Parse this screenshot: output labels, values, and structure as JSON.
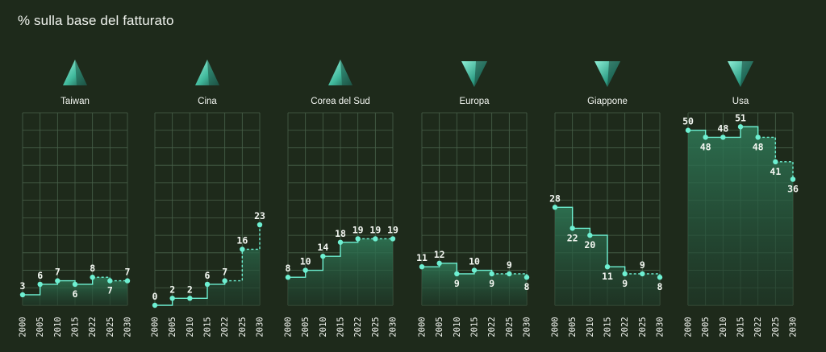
{
  "title": "% sulla base del fatturato",
  "colors": {
    "background": "#1e2a1b",
    "grid": "#48604a",
    "line": "#6ef0d2",
    "fill_top": "#2f7a58",
    "fill_bottom": "#1f3a29",
    "text": "#f0f3ee"
  },
  "chart_data": [
    {
      "type": "line",
      "title": "Taiwan",
      "trend": "up",
      "trend_icon": "triangle-up-icon",
      "categories": [
        "2000",
        "2005",
        "2010",
        "2015",
        "2022",
        "2025",
        "2030"
      ],
      "values": [
        3,
        6,
        7,
        6,
        8,
        7,
        7
      ],
      "projected_from_index": 4,
      "ylim": [
        0,
        55
      ],
      "grid": true
    },
    {
      "type": "line",
      "title": "Cina",
      "trend": "up",
      "trend_icon": "triangle-up-icon",
      "categories": [
        "2000",
        "2005",
        "2010",
        "2015",
        "2022",
        "2025",
        "2030"
      ],
      "values": [
        0,
        2,
        2,
        6,
        7,
        16,
        23
      ],
      "projected_from_index": 4,
      "ylim": [
        0,
        55
      ],
      "grid": true
    },
    {
      "type": "line",
      "title": "Corea del Sud",
      "trend": "up",
      "trend_icon": "triangle-up-icon",
      "categories": [
        "2000",
        "2005",
        "2010",
        "2015",
        "2022",
        "2025",
        "2030"
      ],
      "values": [
        8,
        10,
        14,
        18,
        19,
        19,
        19
      ],
      "projected_from_index": 4,
      "ylim": [
        0,
        55
      ],
      "grid": true
    },
    {
      "type": "line",
      "title": "Europa",
      "trend": "down",
      "trend_icon": "triangle-down-icon",
      "categories": [
        "2000",
        "2005",
        "2010",
        "2015",
        "2022",
        "2025",
        "2030"
      ],
      "values": [
        11,
        12,
        9,
        10,
        9,
        9,
        8
      ],
      "projected_from_index": 4,
      "ylim": [
        0,
        55
      ],
      "grid": true
    },
    {
      "type": "line",
      "title": "Giappone",
      "trend": "down",
      "trend_icon": "triangle-down-icon",
      "categories": [
        "2000",
        "2005",
        "2010",
        "2015",
        "2022",
        "2025",
        "2030"
      ],
      "values": [
        28,
        22,
        20,
        11,
        9,
        9,
        8
      ],
      "projected_from_index": 4,
      "ylim": [
        0,
        55
      ],
      "grid": true
    },
    {
      "type": "line",
      "title": "Usa",
      "trend": "down",
      "trend_icon": "triangle-down-icon",
      "categories": [
        "2000",
        "2005",
        "2010",
        "2015",
        "2022",
        "2025",
        "2030"
      ],
      "values": [
        50,
        48,
        48,
        51,
        48,
        41,
        36
      ],
      "projected_from_index": 4,
      "ylim": [
        0,
        55
      ],
      "grid": true
    }
  ]
}
